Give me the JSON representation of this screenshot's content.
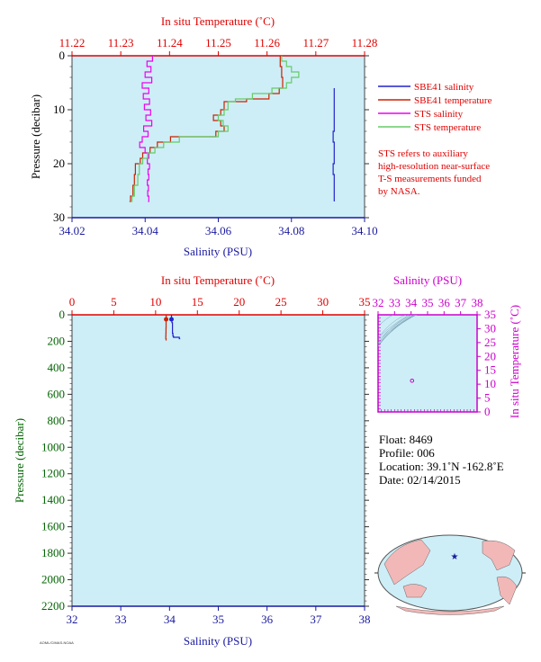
{
  "colors": {
    "panel_bg": "#cdeef7",
    "red": "#e00000",
    "blue": "#1a1aa0",
    "magenta": "#cc00cc",
    "green": "#006400",
    "sbe_salinity": "#2222cc",
    "sbe_temperature": "#cc2200",
    "sts_salinity": "#ee00ee",
    "sts_temperature": "#66cc66",
    "land": "#f2b8b8",
    "ocean": "#cdeef7"
  },
  "chart_data": [
    {
      "type": "line",
      "id": "near-surface-profile",
      "top_axis_title": "In situ Temperature (˚C)",
      "bottom_axis_title": "Salinity (PSU)",
      "left_axis_title": "Pressure (decibar)",
      "top_ticks": [
        "11.22",
        "11.23",
        "11.24",
        "11.25",
        "11.26",
        "11.27",
        "11.28"
      ],
      "bottom_ticks": [
        "34.02",
        "34.04",
        "34.06",
        "34.08",
        "34.10"
      ],
      "left_ticks": [
        "0",
        "10",
        "20",
        "30"
      ],
      "temperature_range": [
        11.22,
        11.28
      ],
      "salinity_range": [
        34.02,
        34.1
      ],
      "pressure_range": [
        0,
        30
      ],
      "series": [
        {
          "name": "SBE41 salinity",
          "axis": "salinity",
          "p": [
            6,
            8,
            10,
            12,
            14,
            16,
            18,
            20,
            22,
            24,
            26,
            27
          ],
          "x": [
            34.0917,
            34.0917,
            34.0917,
            34.0917,
            34.0914,
            34.0917,
            34.0917,
            34.0914,
            34.0917,
            34.0917,
            34.0917,
            34.0917
          ]
        },
        {
          "name": "SBE41 temperature",
          "axis": "temperature",
          "p": [
            0,
            2,
            4,
            6,
            7,
            8,
            8.5,
            10,
            11,
            12,
            13,
            14,
            15,
            16,
            17,
            18,
            19,
            20,
            22,
            24,
            26,
            27
          ],
          "x": [
            11.2627,
            11.263,
            11.2632,
            11.2625,
            11.2604,
            11.2558,
            11.2512,
            11.2505,
            11.249,
            11.2505,
            11.2512,
            11.2495,
            11.2402,
            11.2375,
            11.236,
            11.2345,
            11.234,
            11.233,
            11.2328,
            11.2325,
            11.232,
            11.2318
          ]
        },
        {
          "name": "STS salinity",
          "axis": "salinity",
          "p": [
            0,
            1,
            2,
            3,
            4,
            5,
            6,
            7,
            8,
            9,
            10,
            11,
            12,
            13,
            14,
            15,
            16,
            17,
            18,
            19,
            20,
            21,
            22,
            23,
            24,
            25,
            26,
            27
          ],
          "x": [
            34.042,
            34.0405,
            34.0416,
            34.04,
            34.0418,
            34.0392,
            34.041,
            34.0395,
            34.0412,
            34.0398,
            34.0415,
            34.0402,
            34.0418,
            34.0396,
            34.0408,
            34.0392,
            34.0385,
            34.04,
            34.041,
            34.0406,
            34.0412,
            34.0408,
            34.041,
            34.0406,
            34.0409,
            34.0407,
            34.041,
            34.0408
          ]
        },
        {
          "name": "STS temperature",
          "axis": "temperature",
          "p": [
            0,
            1,
            2,
            3,
            4,
            5,
            6,
            7,
            8,
            8.5,
            10,
            11,
            12,
            13,
            14,
            15,
            16,
            17,
            18,
            19,
            20,
            22,
            24,
            26,
            27
          ],
          "x": [
            11.263,
            11.264,
            11.265,
            11.2665,
            11.265,
            11.264,
            11.261,
            11.257,
            11.2535,
            11.252,
            11.2512,
            11.25,
            11.251,
            11.252,
            11.25,
            11.242,
            11.2388,
            11.237,
            11.2355,
            11.2345,
            11.2338,
            11.2335,
            11.2328,
            11.2323,
            11.232
          ]
        }
      ],
      "legend": [
        "SBE41 salinity",
        "SBE41 temperature",
        "STS salinity",
        "STS temperature"
      ],
      "note_lines": [
        "STS refers to auxiliary",
        "high-resolution near-surface",
        "T-S measurements funded",
        "by NASA."
      ]
    },
    {
      "type": "line",
      "id": "full-depth-profile",
      "top_axis_title": "In situ Temperature (˚C)",
      "bottom_axis_title": "Salinity (PSU)",
      "left_axis_title": "Pressure (decibar)",
      "top_ticks": [
        "0",
        "5",
        "10",
        "15",
        "20",
        "25",
        "30",
        "35"
      ],
      "bottom_ticks": [
        "32",
        "33",
        "34",
        "35",
        "36",
        "37",
        "38"
      ],
      "left_ticks": [
        "0",
        "200",
        "400",
        "600",
        "800",
        "1000",
        "1200",
        "1400",
        "1600",
        "1800",
        "2000",
        "2200"
      ],
      "temperature_range": [
        0,
        35
      ],
      "salinity_range": [
        32,
        38
      ],
      "pressure_range": [
        0,
        2200
      ],
      "series": [
        {
          "name": "temperature",
          "axis": "temperature",
          "p": [
            0,
            10,
            30,
            60,
            100,
            140,
            160,
            180,
            190
          ],
          "x": [
            11.26,
            11.26,
            11.25,
            11.25,
            11.24,
            11.23,
            11.22,
            11.25,
            11.2
          ]
        },
        {
          "name": "salinity",
          "axis": "salinity",
          "p": [
            0,
            10,
            30,
            60,
            100,
            140,
            160,
            170,
            180
          ],
          "x": [
            34.04,
            34.04,
            34.05,
            34.06,
            34.06,
            34.07,
            34.08,
            34.2,
            34.22
          ]
        }
      ]
    },
    {
      "type": "scatter",
      "id": "ts-diagram",
      "top_axis_title": "Salinity (PSU)",
      "right_axis_title": "In situ Temperature (˚C)",
      "top_ticks": [
        "32",
        "33",
        "34",
        "35",
        "36",
        "37",
        "38"
      ],
      "right_ticks": [
        "0",
        "5",
        "10",
        "15",
        "20",
        "25",
        "30",
        "35"
      ],
      "salinity_range": [
        32,
        38
      ],
      "temperature_range": [
        0,
        35
      ],
      "points": [
        {
          "s": 34.06,
          "t": 11.25
        }
      ]
    }
  ],
  "info": {
    "float": "Float:  8469",
    "profile": "Profile:  006",
    "location": "Location:  39.1˚N  -162.8˚E",
    "date": "Date:  02/14/2015"
  },
  "map": {
    "marker_symbol": "★"
  },
  "footer": {
    "credit": "AOML/CIMAS-NOAA"
  }
}
